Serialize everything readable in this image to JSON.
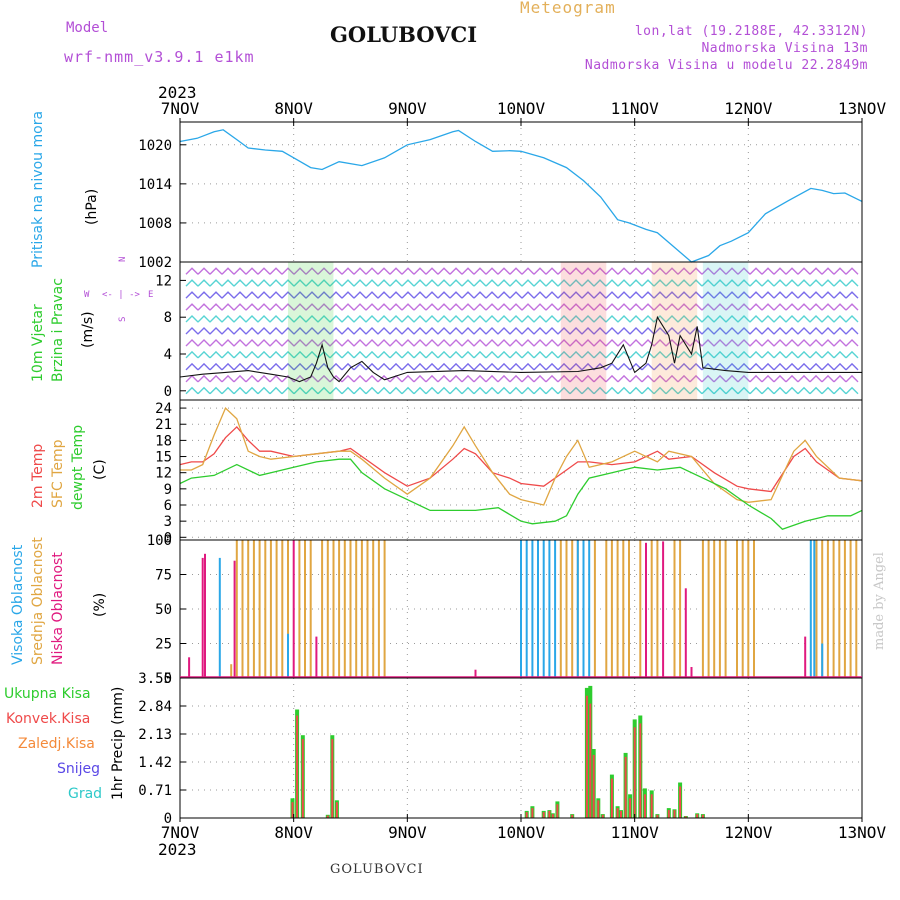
{
  "header": {
    "model_label": "Model",
    "model_name": "wrf-nmm_v3.9.1  e1km",
    "title": "GOLUBOVCI",
    "meteogram_label": "Meteogram",
    "lonlat": "lon,lat (19.2188E, 42.3312N)",
    "elevation": "Nadmorska Visina 13m",
    "model_elevation": "Nadmorska Visina u modelu 22.2849m"
  },
  "footer_title": "GOLUBOVCI",
  "credit": "made by Angel",
  "colors": {
    "pressure": "#2aa7e8",
    "wind_label": "#2ecc2e",
    "wind_mag": "#b34fd6",
    "t2m": "#ef4a4a",
    "sfc": "#e0a642",
    "dew": "#2ecc2e",
    "high_cloud": "#2aa7e8",
    "mid_cloud": "#e0a642",
    "low_cloud": "#e0197f",
    "total_precip": "#2ecc2e",
    "conv_precip": "#ef4a4a",
    "frz_precip": "#f48a3a",
    "snow": "#5a48e6",
    "hail": "#2ec9c9"
  },
  "time_axis": {
    "top_year": "2023",
    "bottom_year": "2023",
    "labels": [
      "7NOV",
      "8NOV",
      "9NOV",
      "10NOV",
      "11NOV",
      "12NOV",
      "13NOV"
    ]
  },
  "panels": {
    "pressure": {
      "title": "Pritisak na nivou mora",
      "unit": "(hPa)"
    },
    "wind": {
      "title1": "10m Vjetar",
      "title2": "Brzina i Pravac",
      "unit": "(m/s)",
      "compass": [
        "N",
        "W",
        "E",
        "S"
      ],
      "compass_arrows": "<- | ->"
    },
    "temp": {
      "label1": "2m Temp",
      "label2": "SFC Temp",
      "label3": "dewpt Temp",
      "unit": "(C)"
    },
    "cloud": {
      "label1": "Visoka Oblacnost",
      "label2": "Srednja Oblacnost",
      "label3": "Niska Oblacnost",
      "unit": "(%)"
    },
    "precip": {
      "unit": "1hr Precip (mm)",
      "legend": [
        "Ukupna Kisa",
        "Konvek.Kisa",
        "Zaledj.Kisa",
        "Snijeg",
        "Grad"
      ]
    }
  },
  "chart_data": [
    {
      "type": "line",
      "title": "Pritisak na nivou mora",
      "ylabel": "(hPa)",
      "ylim": [
        1002,
        1023.5
      ],
      "yticks": [
        1002,
        1008,
        1014,
        1020
      ],
      "x_unit": "days since 7NOV 00UTC",
      "xlim": [
        0,
        6
      ],
      "grid": true,
      "series": [
        {
          "name": "Pritisak na nivou mora",
          "x": [
            0,
            0.15,
            0.3,
            0.38,
            0.5,
            0.6,
            0.75,
            0.9,
            1.0,
            1.15,
            1.25,
            1.4,
            1.6,
            1.8,
            2.0,
            2.2,
            2.4,
            2.45,
            2.6,
            2.75,
            2.9,
            3.0,
            3.2,
            3.4,
            3.55,
            3.7,
            3.85,
            3.95,
            4.1,
            4.2,
            4.3,
            4.5,
            4.65,
            4.75,
            4.85,
            5.0,
            5.15,
            5.35,
            5.55,
            5.65,
            5.75,
            5.85,
            6.0
          ],
          "values": [
            1020.5,
            1021,
            1022,
            1022.3,
            1020.8,
            1019.5,
            1019.2,
            1019,
            1018,
            1016.5,
            1016.2,
            1017.4,
            1016.8,
            1018,
            1020,
            1020.8,
            1022,
            1022.2,
            1020.5,
            1019,
            1019.1,
            1019,
            1018,
            1016.5,
            1014.5,
            1012,
            1008.5,
            1008,
            1007,
            1006.5,
            1005,
            1002,
            1003,
            1004.5,
            1005.2,
            1006.5,
            1009.4,
            1011.4,
            1013.3,
            1013,
            1012.5,
            1012.6,
            1011.3
          ]
        }
      ]
    },
    {
      "type": "line",
      "title": "10m Vjetar Brzina i Pravac",
      "ylabel": "(m/s)",
      "ylim": [
        -1,
        14
      ],
      "yticks": [
        0,
        4,
        8,
        12
      ],
      "x_unit": "days since 7NOV 00UTC",
      "xlim": [
        0,
        6
      ],
      "series": [
        {
          "name": "10m Vjetar Brzina",
          "x": [
            0,
            0.2,
            0.4,
            0.6,
            0.8,
            0.95,
            1.05,
            1.15,
            1.2,
            1.25,
            1.3,
            1.35,
            1.4,
            1.5,
            1.6,
            1.7,
            1.8,
            2.0,
            2.5,
            3.0,
            3.5,
            3.7,
            3.8,
            3.9,
            4.0,
            4.1,
            4.15,
            4.2,
            4.3,
            4.35,
            4.4,
            4.5,
            4.55,
            4.6,
            4.8,
            5.0,
            5.5,
            6.0
          ],
          "values": [
            1.5,
            1.8,
            2.0,
            2.2,
            1.8,
            1.5,
            1.0,
            1.5,
            3.0,
            5.0,
            2.5,
            1.5,
            1.0,
            2.5,
            3.2,
            2.0,
            1.2,
            2.0,
            2.2,
            2.0,
            2.1,
            2.5,
            3.0,
            5.0,
            2.0,
            3.0,
            5.0,
            8.0,
            6.0,
            3.0,
            6.0,
            4.0,
            7.0,
            2.5,
            2.2,
            2.0,
            2.0,
            2.0
          ]
        }
      ]
    },
    {
      "type": "line",
      "title": "",
      "ylabel": "(C)",
      "ylim": [
        -0.5,
        25.5
      ],
      "yticks": [
        0,
        3,
        6,
        9,
        12,
        15,
        18,
        21,
        24
      ],
      "x_unit": "days since 7NOV 00UTC",
      "xlim": [
        0,
        6
      ],
      "grid": true,
      "series": [
        {
          "name": "2m Temp",
          "x": [
            0,
            0.1,
            0.2,
            0.3,
            0.4,
            0.5,
            0.6,
            0.7,
            0.8,
            1.0,
            1.2,
            1.4,
            1.5,
            1.6,
            1.8,
            2.0,
            2.2,
            2.4,
            2.5,
            2.6,
            2.75,
            2.9,
            3.0,
            3.2,
            3.4,
            3.5,
            3.6,
            3.8,
            4.0,
            4.2,
            4.3,
            4.5,
            4.7,
            4.9,
            5.0,
            5.2,
            5.4,
            5.5,
            5.6,
            5.8,
            6.0
          ],
          "values": [
            13.5,
            14,
            14,
            15.5,
            18.5,
            20.5,
            18,
            16,
            16,
            15,
            15.5,
            16,
            16.5,
            15,
            12,
            9.5,
            11,
            14.5,
            16.5,
            15.5,
            12,
            11,
            10,
            9.5,
            12.5,
            14,
            14,
            13.5,
            14,
            16,
            14.5,
            15,
            12,
            9.5,
            9,
            8.5,
            15,
            16.5,
            14,
            11,
            10.5
          ]
        },
        {
          "name": "SFC Temp",
          "x": [
            0,
            0.1,
            0.2,
            0.3,
            0.4,
            0.5,
            0.6,
            0.7,
            0.8,
            1.0,
            1.2,
            1.4,
            1.5,
            1.6,
            1.8,
            2.0,
            2.2,
            2.4,
            2.5,
            2.6,
            2.75,
            2.9,
            3.0,
            3.2,
            3.3,
            3.4,
            3.5,
            3.6,
            3.8,
            4.0,
            4.2,
            4.3,
            4.5,
            4.7,
            4.9,
            5.0,
            5.2,
            5.4,
            5.5,
            5.6,
            5.8,
            6.0
          ],
          "values": [
            12.5,
            12.5,
            13.5,
            19,
            24,
            22,
            16,
            15,
            14.5,
            15,
            15.5,
            16,
            16,
            14.5,
            11,
            8,
            11,
            17,
            20.5,
            17,
            12,
            8,
            7,
            6,
            11,
            15,
            18,
            13,
            14,
            16,
            14,
            16,
            15,
            10,
            7,
            6.5,
            7,
            16,
            18,
            15,
            11,
            10.5
          ]
        },
        {
          "name": "dewpt Temp",
          "x": [
            0,
            0.1,
            0.3,
            0.5,
            0.7,
            0.8,
            1.0,
            1.2,
            1.4,
            1.5,
            1.6,
            1.8,
            2.0,
            2.2,
            2.4,
            2.6,
            2.8,
            3.0,
            3.1,
            3.3,
            3.4,
            3.5,
            3.6,
            3.8,
            4.0,
            4.2,
            4.4,
            4.6,
            4.8,
            5.0,
            5.2,
            5.3,
            5.5,
            5.7,
            5.9,
            6.0
          ],
          "values": [
            10,
            11,
            11.5,
            13.5,
            11.5,
            12,
            13,
            14,
            14.5,
            14.5,
            12,
            9,
            7,
            5,
            5,
            5,
            5.5,
            3,
            2.5,
            3,
            4,
            8,
            11,
            12,
            13,
            12.5,
            13,
            11,
            9,
            6,
            3.5,
            1.5,
            3,
            4,
            4,
            5
          ]
        }
      ]
    },
    {
      "type": "bar",
      "title": "",
      "ylabel": "(%)",
      "ylim": [
        0,
        100
      ],
      "yticks": [
        0,
        25,
        50,
        75,
        100
      ],
      "x_unit": "days since 7NOV 00UTC",
      "xlim": [
        0,
        6
      ],
      "grid": true,
      "series": [
        {
          "name": "Niska Oblacnost",
          "x": [
            0.08,
            0.2,
            0.22,
            0.48,
            1.0,
            1.2,
            2.6,
            3.55,
            4.1,
            4.25,
            4.45,
            4.5,
            5.5
          ],
          "values": [
            15,
            87,
            90,
            85,
            100,
            30,
            6,
            10,
            98,
            99,
            65,
            8,
            30
          ]
        },
        {
          "name": "Srednja Oblacnost",
          "x": [
            0.45,
            0.5,
            0.55,
            0.6,
            0.65,
            0.7,
            0.75,
            0.8,
            0.85,
            0.9,
            0.95,
            1.05,
            1.1,
            1.15,
            1.25,
            1.3,
            1.35,
            1.4,
            1.45,
            1.5,
            1.55,
            1.6,
            1.65,
            1.7,
            1.75,
            1.8,
            3.35,
            3.4,
            3.45,
            3.5,
            3.65,
            3.75,
            3.8,
            3.85,
            3.9,
            3.95,
            4.05,
            4.15,
            4.2,
            4.35,
            4.4,
            4.6,
            4.65,
            4.7,
            4.75,
            4.8,
            4.9,
            4.95,
            5.0,
            5.05,
            5.6,
            5.65,
            5.7,
            5.75,
            5.8,
            5.85,
            5.9,
            5.95
          ],
          "values": [
            10,
            100,
            100,
            100,
            100,
            100,
            100,
            100,
            100,
            100,
            100,
            100,
            100,
            100,
            100,
            100,
            100,
            100,
            100,
            100,
            100,
            100,
            100,
            100,
            100,
            100,
            100,
            100,
            100,
            100,
            100,
            100,
            100,
            100,
            100,
            100,
            100,
            100,
            100,
            100,
            100,
            100,
            100,
            100,
            100,
            100,
            100,
            100,
            100,
            100,
            100,
            100,
            100,
            100,
            100,
            100,
            100,
            100
          ]
        },
        {
          "name": "Visoka Oblacnost",
          "x": [
            0.35,
            0.95,
            3.0,
            3.05,
            3.1,
            3.15,
            3.2,
            3.25,
            3.3,
            3.5,
            3.55,
            3.6,
            5.55,
            5.58,
            5.65
          ],
          "values": [
            87,
            32,
            100,
            100,
            100,
            100,
            100,
            100,
            100,
            100,
            100,
            100,
            100,
            100,
            25
          ]
        }
      ]
    },
    {
      "type": "bar",
      "title": "",
      "ylabel": "1hr Precip (mm)",
      "ylim": [
        0,
        3.55
      ],
      "yticks": [
        0,
        0.71,
        1.42,
        2.13,
        2.84,
        3.55
      ],
      "x_unit": "days since 7NOV 00UTC",
      "xlim": [
        0,
        6
      ],
      "grid": true,
      "series": [
        {
          "name": "Ukupna Kisa",
          "x": [
            0.99,
            1.03,
            1.08,
            1.3,
            1.34,
            1.38,
            3.05,
            3.1,
            3.2,
            3.25,
            3.28,
            3.32,
            3.45,
            3.58,
            3.61,
            3.64,
            3.68,
            3.72,
            3.8,
            3.85,
            3.88,
            3.92,
            3.96,
            4.0,
            4.05,
            4.09,
            4.15,
            4.2,
            4.3,
            4.35,
            4.4,
            4.45,
            4.55,
            4.6
          ],
          "values": [
            0.5,
            2.75,
            2.1,
            0.08,
            2.1,
            0.45,
            0.18,
            0.3,
            0.18,
            0.2,
            0.12,
            0.42,
            0.1,
            3.3,
            3.35,
            1.75,
            0.5,
            0.1,
            1.1,
            0.3,
            0.2,
            1.65,
            0.6,
            2.5,
            2.6,
            0.75,
            0.7,
            0.1,
            0.25,
            0.22,
            0.9,
            0.05,
            0.12,
            0.1
          ]
        },
        {
          "name": "Konvek.Kisa",
          "x": [
            0.99,
            1.03,
            1.08,
            1.3,
            1.34,
            1.38,
            3.05,
            3.1,
            3.2,
            3.25,
            3.28,
            3.32,
            3.45,
            3.58,
            3.61,
            3.64,
            3.68,
            3.72,
            3.8,
            3.85,
            3.88,
            3.92,
            3.96,
            4.0,
            4.05,
            4.09,
            4.15,
            4.2,
            4.3,
            4.35,
            4.4,
            4.45,
            4.55,
            4.6
          ],
          "values": [
            0.4,
            2.6,
            2.0,
            0.06,
            2.0,
            0.4,
            0.15,
            0.25,
            0.15,
            0.18,
            0.1,
            0.35,
            0.08,
            3.1,
            2.9,
            1.6,
            0.45,
            0.08,
            1.0,
            0.25,
            0.18,
            1.55,
            0.5,
            2.3,
            2.4,
            0.6,
            0.6,
            0.08,
            0.2,
            0.2,
            0.8,
            0.04,
            0.1,
            0.08
          ]
        }
      ]
    }
  ]
}
